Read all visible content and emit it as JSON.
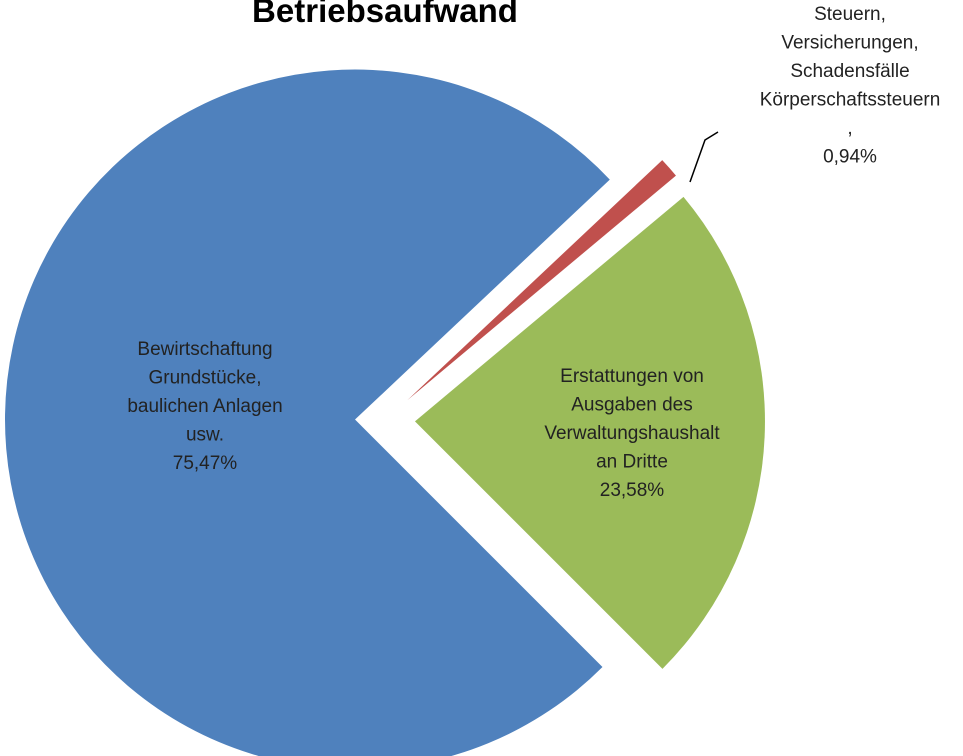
{
  "chart_data": {
    "type": "pie",
    "title": "Betriebsaufwand",
    "categories": [
      "Bewirtschaftung\nGrundstücke,\nbaulichen  Anlagen\nusw.",
      "Steuern,\nVersicherungen,\nSchadensfälle\nKörperschaftssteuern\n,",
      "Erstattungen von\nAusgaben des\nVerwaltungshaushalt\nan Dritte"
    ],
    "values": [
      75.47,
      0.94,
      23.58
    ],
    "value_labels": [
      "75,47%",
      "0,94%",
      "23,58%"
    ],
    "colors": [
      "#4f81bd",
      "#c0504d",
      "#9bbb59"
    ]
  }
}
